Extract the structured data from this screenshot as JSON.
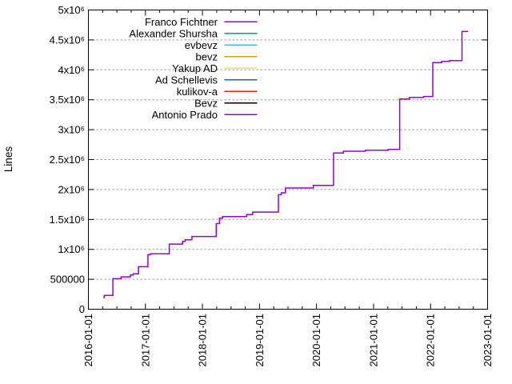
{
  "chart_data": {
    "type": "line",
    "mode": "step-after",
    "title": "",
    "ylabel": "Lines",
    "xlabel": "",
    "x_range": [
      "2016-01-01",
      "2023-01-01"
    ],
    "ylim": [
      0,
      5000000
    ],
    "x_tick_labels": [
      "2016-01-01",
      "2017-01-01",
      "2018-01-01",
      "2019-01-01",
      "2020-01-01",
      "2021-01-01",
      "2022-01-01",
      "2023-01-01"
    ],
    "x_minor_ticks_per_year": 4,
    "y_ticks": [
      {
        "value": 0,
        "label": "0"
      },
      {
        "value": 500000,
        "label": "500000"
      },
      {
        "value": 1000000,
        "label": "1x10⁶"
      },
      {
        "value": 1500000,
        "label": "1.5x10⁶"
      },
      {
        "value": 2000000,
        "label": "2x10⁶"
      },
      {
        "value": 2500000,
        "label": "2.5x10⁶"
      },
      {
        "value": 3000000,
        "label": "3x10⁶"
      },
      {
        "value": 3500000,
        "label": "3.5x10⁶"
      },
      {
        "value": 4000000,
        "label": "4x10⁶"
      },
      {
        "value": 4500000,
        "label": "4.5x10⁶"
      },
      {
        "value": 5000000,
        "label": "5x10⁶"
      }
    ],
    "grid": "horizontal-dashed",
    "legend": {
      "position": "top-inside",
      "entries": [
        {
          "name": "Franco Fichtner",
          "color": "#9400d3"
        },
        {
          "name": "Alexander Shursha",
          "color": "#009e73"
        },
        {
          "name": "evbevz",
          "color": "#56b4e9"
        },
        {
          "name": "bevz",
          "color": "#e69f00"
        },
        {
          "name": "Yakup AD",
          "color": "#f0e442"
        },
        {
          "name": "Ad Schellevis",
          "color": "#0072b2"
        },
        {
          "name": "kulikov-a",
          "color": "#e51e10"
        },
        {
          "name": "Bevz",
          "color": "#000000"
        },
        {
          "name": "Antonio Prado",
          "color": "#9400d3"
        }
      ]
    },
    "visible_curve": {
      "color": "#9400d3",
      "steps": [
        [
          "2016-04-06",
          196000
        ],
        [
          "2016-04-12",
          230000
        ],
        [
          "2016-06-06",
          510000
        ],
        [
          "2016-07-28",
          540000
        ],
        [
          "2016-09-26",
          572000
        ],
        [
          "2016-10-14",
          592000
        ],
        [
          "2016-11-17",
          710000
        ],
        [
          "2017-01-16",
          911000
        ],
        [
          "2017-02-02",
          925000
        ],
        [
          "2017-06-02",
          1088000
        ],
        [
          "2017-08-26",
          1133000
        ],
        [
          "2017-09-12",
          1160000
        ],
        [
          "2017-10-25",
          1215000
        ],
        [
          "2018-03-30",
          1430000
        ],
        [
          "2018-04-20",
          1522000
        ],
        [
          "2018-05-10",
          1548000
        ],
        [
          "2018-10-10",
          1580000
        ],
        [
          "2018-11-18",
          1623000
        ],
        [
          "2019-05-02",
          1913000
        ],
        [
          "2019-05-21",
          1945000
        ],
        [
          "2019-06-16",
          2025000
        ],
        [
          "2019-12-12",
          2068000
        ],
        [
          "2020-04-19",
          2610000
        ],
        [
          "2020-06-21",
          2640000
        ],
        [
          "2020-11-10",
          2656000
        ],
        [
          "2021-04-04",
          2670000
        ],
        [
          "2021-06-17",
          3512000
        ],
        [
          "2021-08-19",
          3540000
        ],
        [
          "2021-11-17",
          3555000
        ],
        [
          "2022-01-15",
          4120000
        ],
        [
          "2022-03-13",
          4140000
        ],
        [
          "2022-05-03",
          4155000
        ],
        [
          "2022-07-21",
          4640000
        ],
        [
          "2022-08-29",
          4640000
        ]
      ]
    }
  },
  "colors": {
    "background": "#ffffff",
    "axis": "#000000",
    "grid": "#9a9a9a",
    "text": "#000000"
  }
}
